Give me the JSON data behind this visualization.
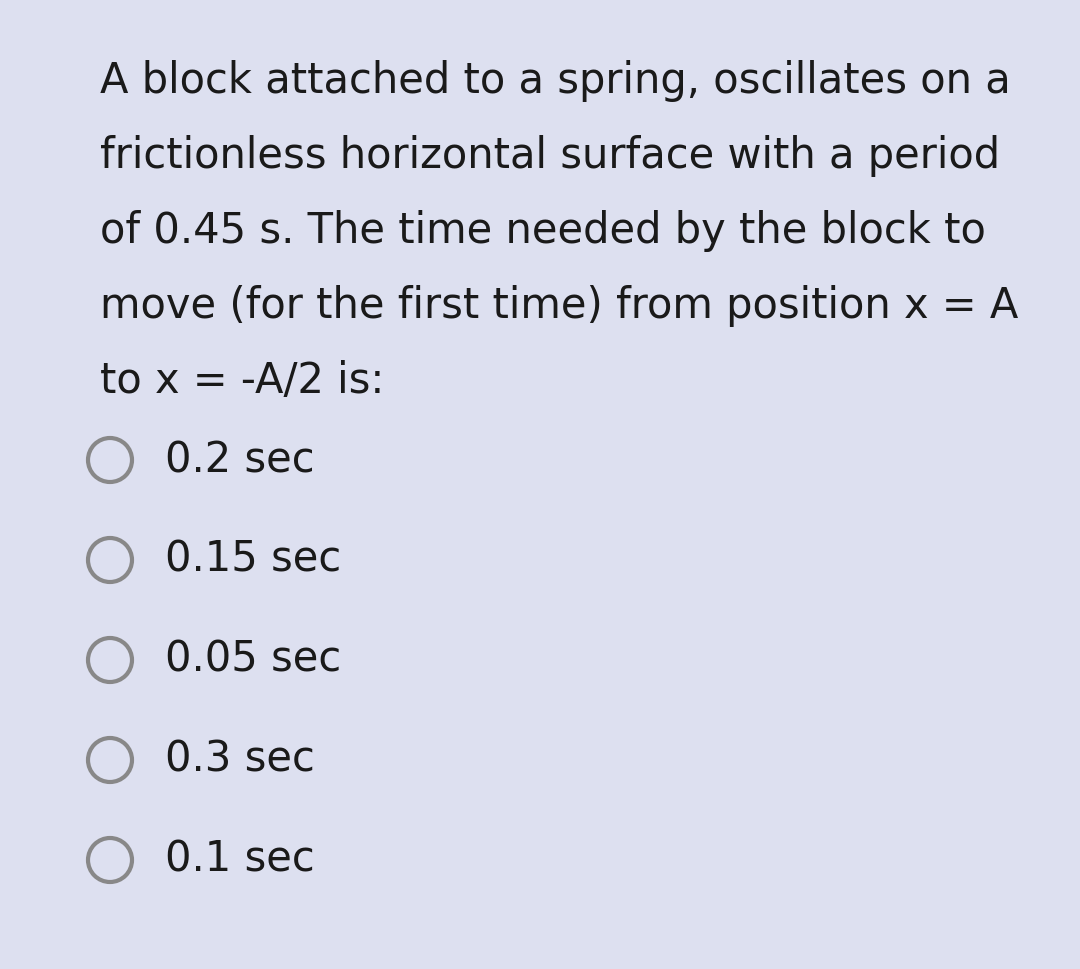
{
  "background_color": "#ffffff",
  "outer_background_color": "#dde0f0",
  "question_text_lines": [
    "A block attached to a spring, oscillates on a",
    "frictionless horizontal surface with a period",
    "of 0.45 s. The time needed by the block to",
    "move (for the first time) from position x = A",
    "to x = -A/2 is:"
  ],
  "options": [
    "0.2 sec",
    "0.15 sec",
    "0.05 sec",
    "0.3 sec",
    "0.1 sec"
  ],
  "text_color": "#1a1a1a",
  "circle_color": "#888888",
  "question_font_size": 30,
  "option_font_size": 30,
  "fig_width": 10.8,
  "fig_height": 9.69,
  "dpi": 100
}
